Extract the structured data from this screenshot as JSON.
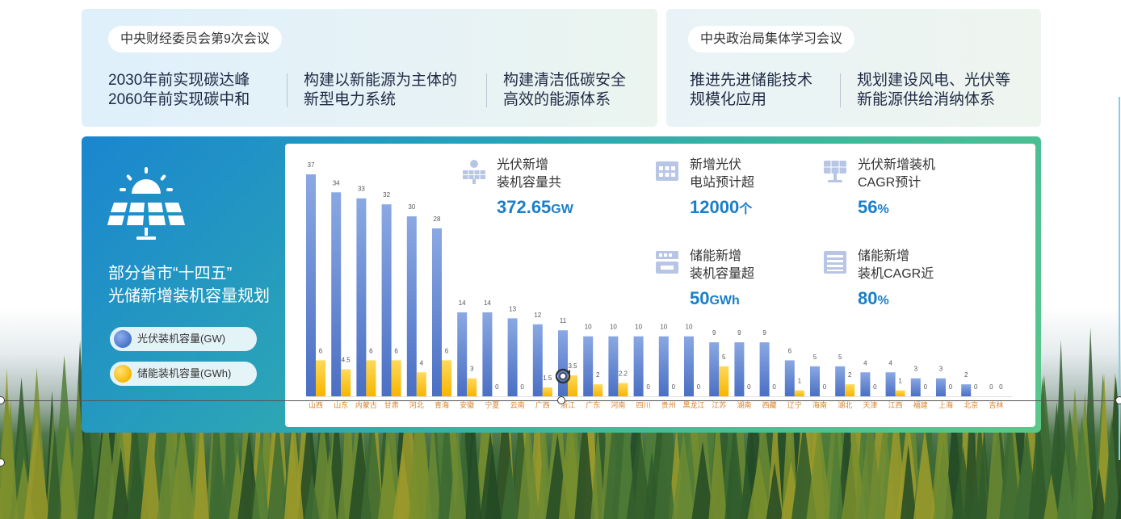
{
  "top_left": {
    "pill": "中央财经委员会第9次会议",
    "items": [
      {
        "line1": "2030年前实现碳达峰",
        "line2": "2060年前实现碳中和"
      },
      {
        "line1": "构建以新能源为主体的",
        "line2": "新型电力系统"
      },
      {
        "line1": "构建清洁低碳安全",
        "line2": "高效的能源体系"
      }
    ]
  },
  "top_right": {
    "pill": "中央政治局集体学习会议",
    "items": [
      {
        "line1": "推进先进储能技术",
        "line2": "规模化应用"
      },
      {
        "line1": "规划建设风电、光伏等",
        "line2": "新能源供给消纳体系"
      }
    ]
  },
  "panel": {
    "title_line1": "部分省市“十四五”",
    "title_line2": "光储新增装机容量规划",
    "legend_pv": "光伏装机容量(GW)",
    "legend_storage": "储能装机容量(GWh)"
  },
  "stats": [
    {
      "line1": "光伏新增",
      "line2": "装机容量共",
      "value": "372.65",
      "unit": "GW",
      "icon": "solar-panel-icon"
    },
    {
      "line1": "新增光伏",
      "line2": "电站预计超",
      "value": "12000",
      "unit": "个",
      "icon": "power-station-icon"
    },
    {
      "line1": "光伏新增装机",
      "line2": "CAGR预计",
      "value": "56",
      "unit": "%",
      "icon": "solar-growth-icon"
    },
    {
      "line1": "储能新增",
      "line2": "装机容量超",
      "value": "50",
      "unit": "GWh",
      "icon": "battery-storage-icon"
    },
    {
      "line1": "储能新增",
      "line2": "装机CAGR近",
      "value": "80",
      "unit": "%",
      "icon": "storage-growth-icon"
    }
  ],
  "colors": {
    "pv": "#6f93d8",
    "storage": "#f9c31a",
    "label": "#d9822b",
    "value_text": "#1a7fc8"
  },
  "chart_data": {
    "type": "bar",
    "categories": [
      "山西",
      "山东",
      "内蒙古",
      "甘肃",
      "河北",
      "青海",
      "安徽",
      "宁夏",
      "云南",
      "广西",
      "浙江",
      "广东",
      "河南",
      "四川",
      "贵州",
      "黑龙江",
      "江苏",
      "湖南",
      "西藏",
      "辽宁",
      "海南",
      "湖北",
      "天津",
      "江西",
      "福建",
      "上海",
      "北京",
      "吉林"
    ],
    "series": [
      {
        "name": "光伏装机容量(GW)",
        "values": [
          37,
          34,
          33,
          32,
          30,
          28,
          14,
          14,
          13,
          12,
          11,
          10,
          10,
          10,
          10,
          10,
          9,
          9,
          9,
          6,
          5,
          5,
          4,
          4,
          3,
          3,
          2,
          0
        ]
      },
      {
        "name": "储能装机容量(GWh)",
        "values": [
          6,
          4.5,
          6,
          6,
          4,
          6,
          3,
          0,
          0,
          1.5,
          3.5,
          2,
          2.2,
          0,
          0,
          0,
          5,
          0,
          0,
          1,
          0,
          2,
          0,
          1,
          0,
          0,
          0,
          0
        ]
      }
    ],
    "value_labels_pv": [
      "37",
      "34",
      "33",
      "32",
      "30",
      "28",
      "14",
      "14",
      "13",
      "12",
      "11",
      "10",
      "10",
      "10",
      "10",
      "10",
      "9",
      "9",
      "9",
      "6",
      "5",
      "5",
      "4",
      "4",
      "3",
      "3",
      "2",
      "0"
    ],
    "value_labels_storage": [
      "6",
      "4.5",
      "6",
      "6",
      "4",
      "6",
      "3",
      "0",
      "0",
      "1.5",
      "3.5",
      "2",
      "2.2",
      "0",
      "0",
      "0",
      "5",
      "0",
      "0",
      "1",
      "0",
      "2",
      "0",
      "1",
      "0",
      "0",
      "0",
      "0"
    ],
    "ylim": [
      0,
      40
    ],
    "grid": false,
    "legend": "left"
  }
}
